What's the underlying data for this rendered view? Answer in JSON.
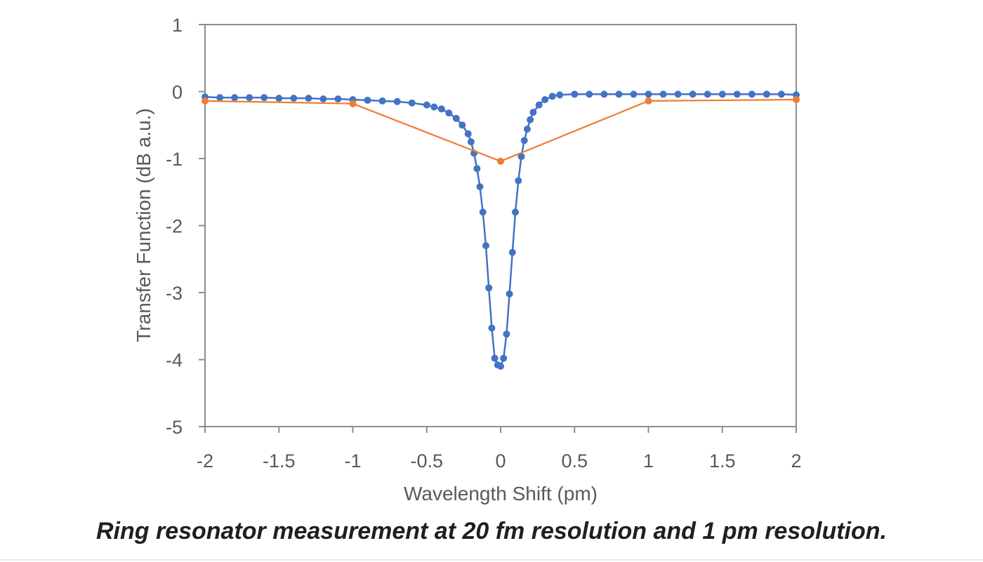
{
  "caption": "Ring resonator measurement at 20 fm resolution and 1 pm resolution.",
  "chart_data": {
    "type": "line",
    "xlabel": "Wavelength Shift (pm)",
    "ylabel": "Transfer Function (dB a.u.)",
    "xlim": [
      -2,
      2
    ],
    "ylim": [
      -5,
      1
    ],
    "xticks": [
      "-2",
      "-1.5",
      "-1",
      "-0.5",
      "0",
      "0.5",
      "1",
      "1.5",
      "2"
    ],
    "yticks": [
      "1",
      "0",
      "-1",
      "-2",
      "-3",
      "-4",
      "-5"
    ],
    "grid": false,
    "series": [
      {
        "color": "#4472c4",
        "marker": "circle",
        "x": [
          -2.0,
          -1.9,
          -1.8,
          -1.7,
          -1.6,
          -1.5,
          -1.4,
          -1.3,
          -1.2,
          -1.1,
          -1.0,
          -0.9,
          -0.8,
          -0.7,
          -0.6,
          -0.5,
          -0.45,
          -0.4,
          -0.35,
          -0.3,
          -0.26,
          -0.22,
          -0.2,
          -0.18,
          -0.16,
          -0.14,
          -0.12,
          -0.1,
          -0.08,
          -0.06,
          -0.04,
          -0.02,
          0.0,
          0.02,
          0.04,
          0.06,
          0.08,
          0.1,
          0.12,
          0.14,
          0.16,
          0.18,
          0.2,
          0.22,
          0.26,
          0.3,
          0.35,
          0.4,
          0.5,
          0.6,
          0.7,
          0.8,
          0.9,
          1.0,
          1.1,
          1.2,
          1.3,
          1.4,
          1.5,
          1.6,
          1.7,
          1.8,
          1.9,
          2.0
        ],
        "values": [
          -0.08,
          -0.09,
          -0.09,
          -0.09,
          -0.09,
          -0.1,
          -0.1,
          -0.1,
          -0.11,
          -0.11,
          -0.12,
          -0.13,
          -0.14,
          -0.15,
          -0.17,
          -0.2,
          -0.23,
          -0.26,
          -0.32,
          -0.4,
          -0.5,
          -0.63,
          -0.75,
          -0.92,
          -1.15,
          -1.42,
          -1.8,
          -2.3,
          -2.93,
          -3.53,
          -3.98,
          -4.08,
          -4.1,
          -3.98,
          -3.62,
          -3.02,
          -2.4,
          -1.8,
          -1.33,
          -0.97,
          -0.73,
          -0.56,
          -0.42,
          -0.31,
          -0.2,
          -0.12,
          -0.07,
          -0.05,
          -0.04,
          -0.04,
          -0.04,
          -0.04,
          -0.04,
          -0.04,
          -0.04,
          -0.04,
          -0.04,
          -0.04,
          -0.04,
          -0.04,
          -0.04,
          -0.04,
          -0.04,
          -0.05
        ]
      },
      {
        "color": "#ed7d31",
        "marker": "circle",
        "x": [
          -2,
          -1,
          0,
          1,
          2
        ],
        "values": [
          -0.14,
          -0.18,
          -1.04,
          -0.14,
          -0.12
        ]
      }
    ]
  }
}
